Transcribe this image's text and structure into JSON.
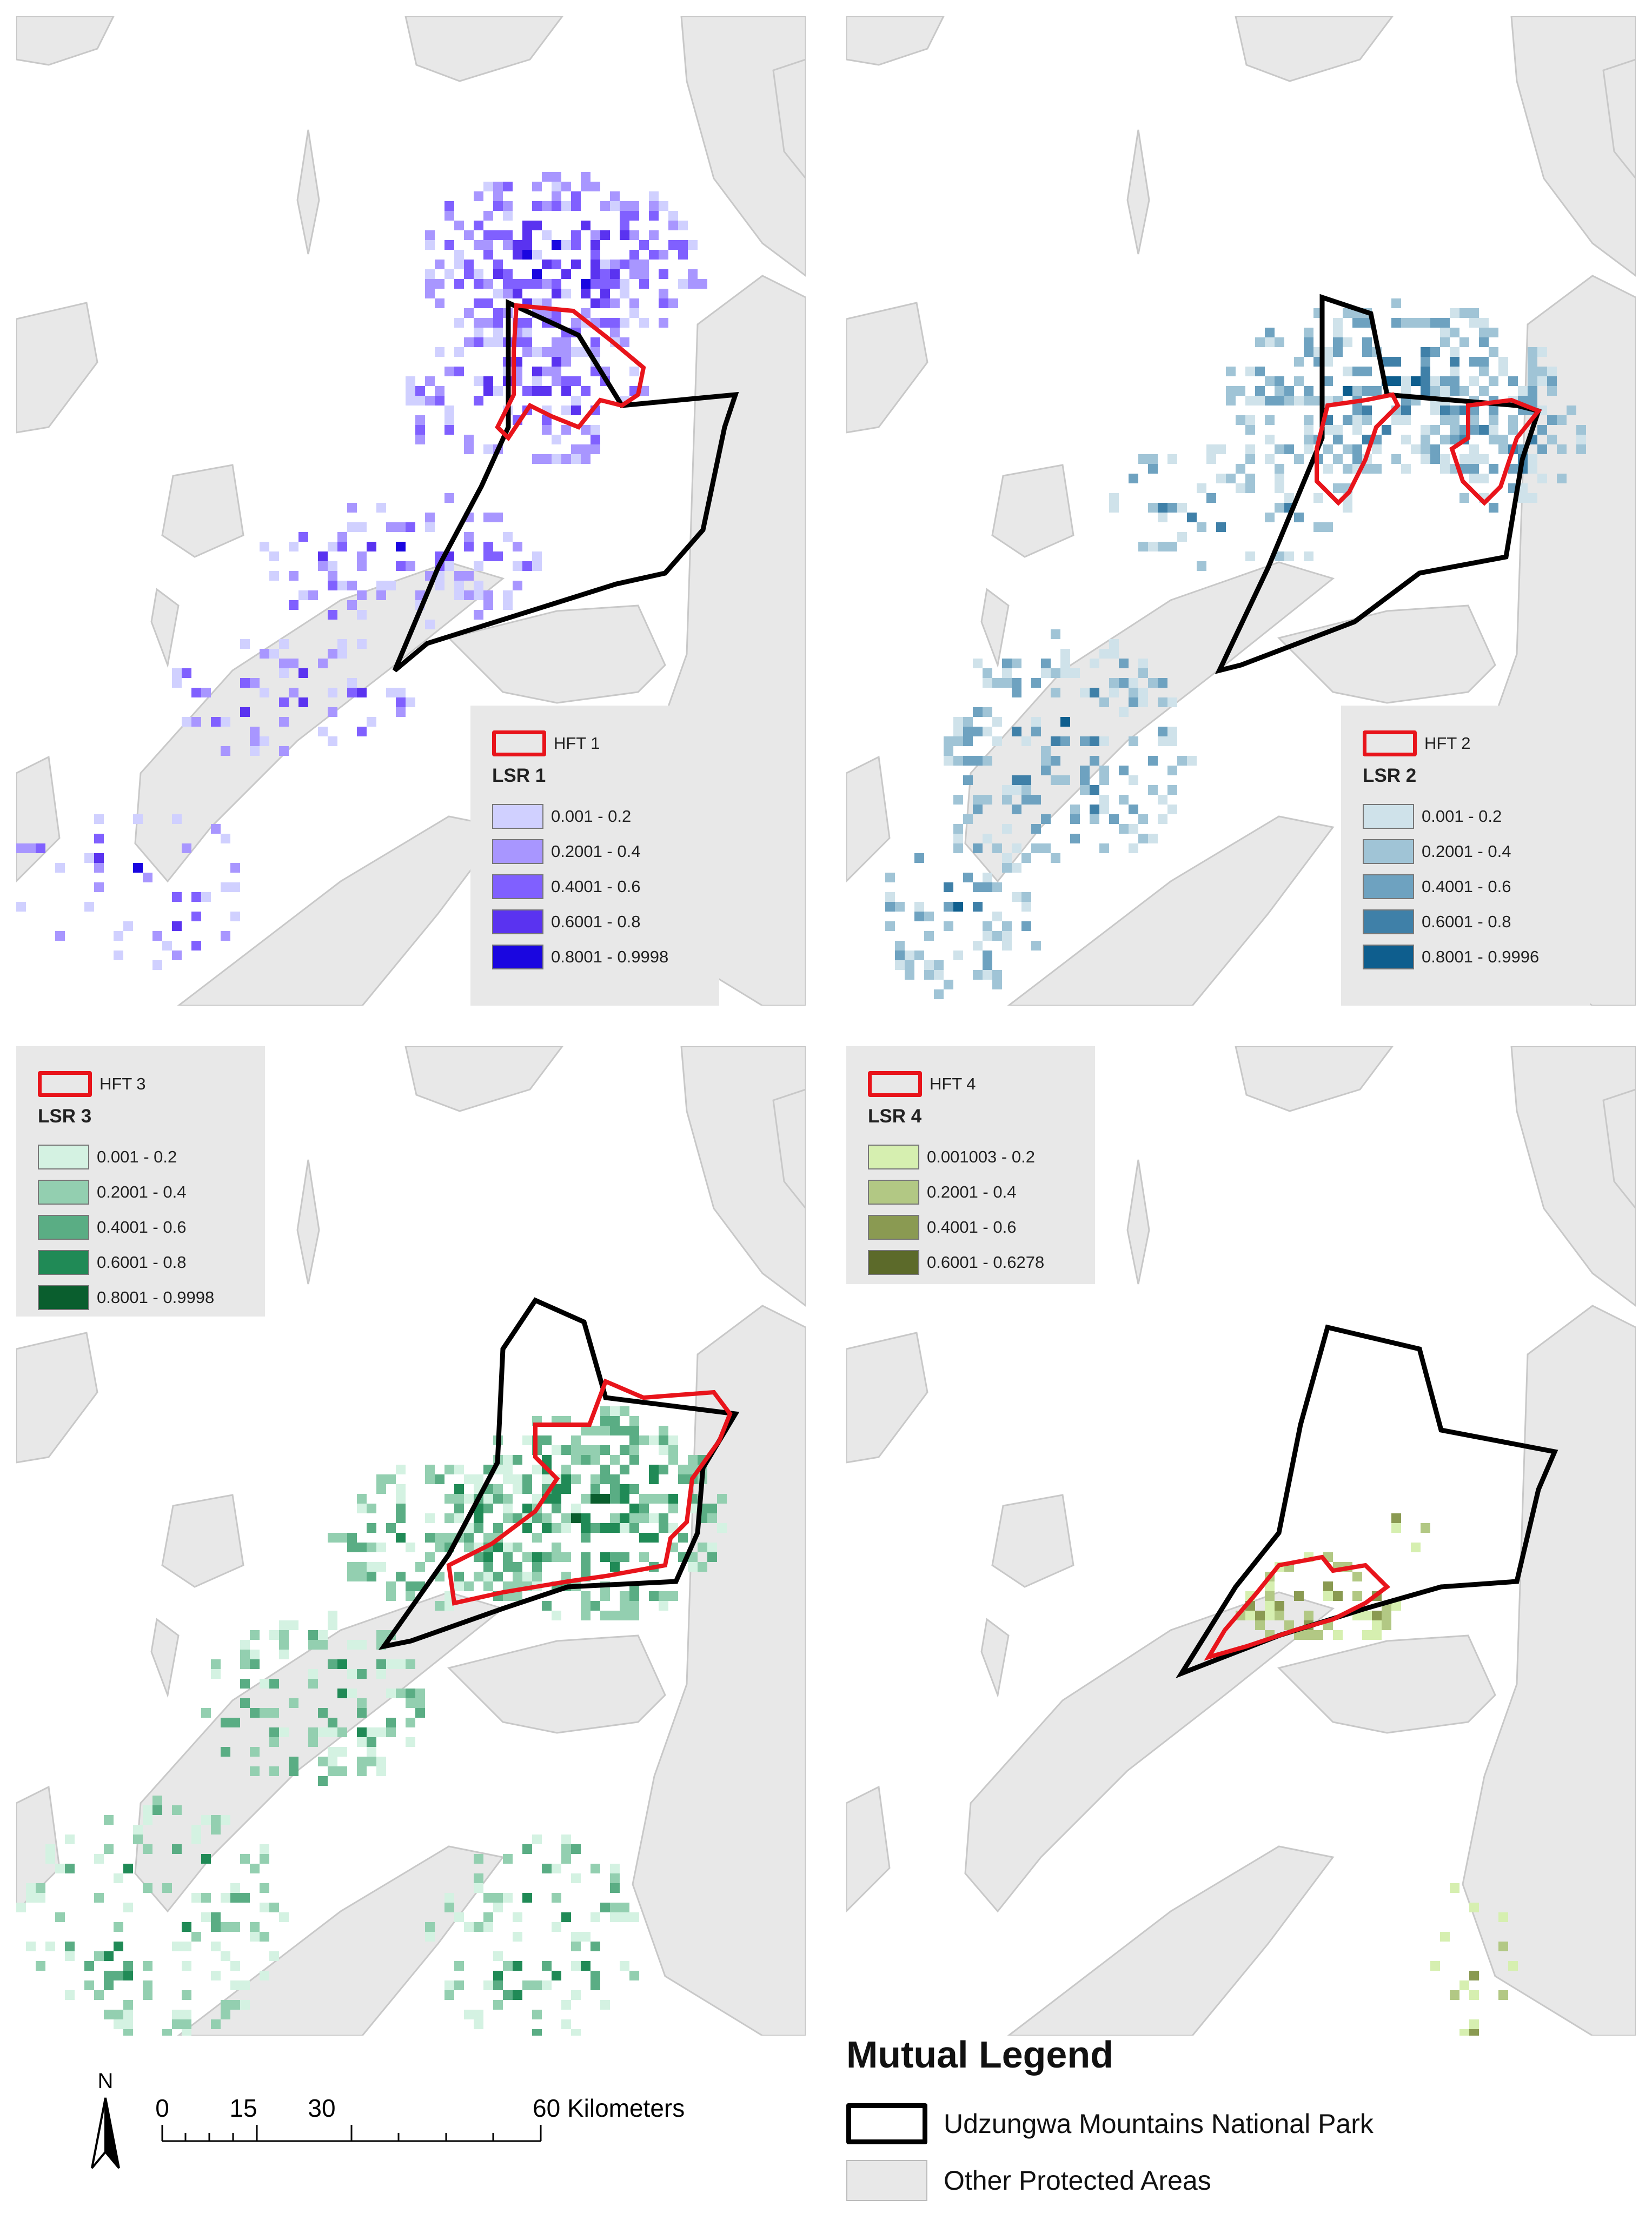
{
  "colors": {
    "protected": "#e8e8e8",
    "protected_stroke": "#c8c8c8",
    "park_outline": "#000000",
    "hft_outline": "#e8141b",
    "legend_bg": "#e8e8e8"
  },
  "panels": [
    {
      "hft_label": "HFT 1",
      "lsr_title": "LSR 1",
      "classes": [
        {
          "label": "0.001 - 0.2",
          "color": "#d0d0ff"
        },
        {
          "label": "0.2001 - 0.4",
          "color": "#a896ff"
        },
        {
          "label": "0.4001 - 0.6",
          "color": "#8060ff"
        },
        {
          "label": "0.6001 - 0.8",
          "color": "#5a33f0"
        },
        {
          "label": "0.8001 - 0.9998",
          "color": "#1a06e0"
        }
      ]
    },
    {
      "hft_label": "HFT 2",
      "lsr_title": "LSR 2",
      "classes": [
        {
          "label": "0.001 - 0.2",
          "color": "#cfe2ea"
        },
        {
          "label": "0.2001 - 0.4",
          "color": "#a0c4d6"
        },
        {
          "label": "0.4001 - 0.6",
          "color": "#6ea2c0"
        },
        {
          "label": "0.6001 - 0.8",
          "color": "#3f80a8"
        },
        {
          "label": "0.8001 - 0.9996",
          "color": "#0e5e8e"
        }
      ]
    },
    {
      "hft_label": "HFT 3",
      "lsr_title": "LSR 3",
      "classes": [
        {
          "label": "0.001 - 0.2",
          "color": "#d4f2e2"
        },
        {
          "label": "0.2001 - 0.4",
          "color": "#93cfb0"
        },
        {
          "label": "0.4001 - 0.6",
          "color": "#5aad84"
        },
        {
          "label": "0.6001 - 0.8",
          "color": "#208a56"
        },
        {
          "label": "0.8001 - 0.9998",
          "color": "#0a5e2e"
        }
      ]
    },
    {
      "hft_label": "HFT 4",
      "lsr_title": "LSR 4",
      "classes": [
        {
          "label": "0.001003 - 0.2",
          "color": "#d6efb0"
        },
        {
          "label": "0.2001 - 0.4",
          "color": "#b2c884"
        },
        {
          "label": "0.4001 - 0.6",
          "color": "#8a9a52"
        },
        {
          "label": "0.6001 - 0.6278",
          "color": "#5c6a2a"
        }
      ]
    }
  ],
  "scale": {
    "north": "N",
    "ticks": [
      "0",
      "15",
      "30",
      "60 Kilometers"
    ]
  },
  "mutual_legend": {
    "title": "Mutual Legend",
    "park_label": "Udzungwa Mountains National Park",
    "other_label": "Other Protected Areas"
  }
}
